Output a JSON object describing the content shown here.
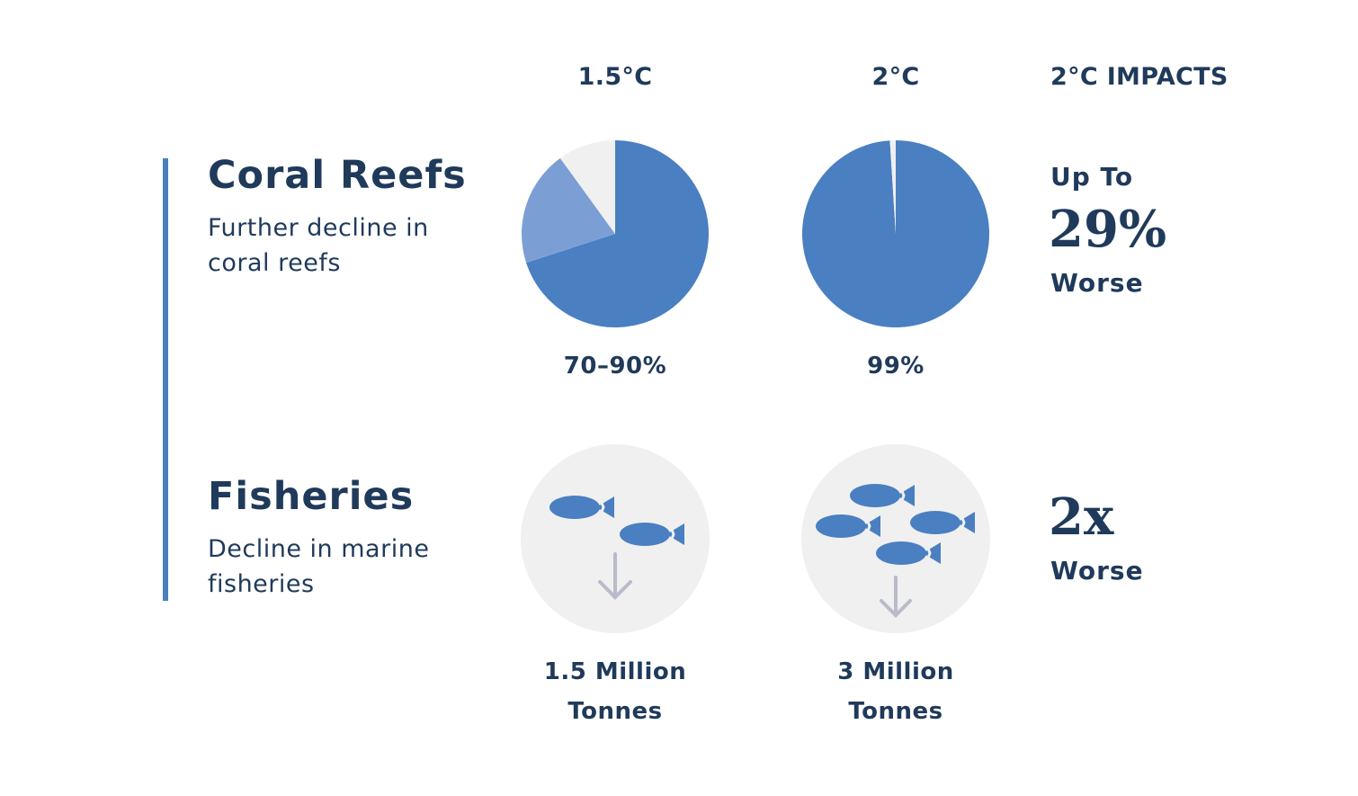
{
  "columns": {
    "col1": "1.5°C",
    "col2": "2°C",
    "col3": "2°C IMPACTS"
  },
  "colors": {
    "accent": "#4a7fc1",
    "accent_light": "#7b9fd4",
    "neutral": "#f0f0f1",
    "text": "#1f3a5a",
    "arrow": "#b9bbc9"
  },
  "coral": {
    "title": "Coral Reefs",
    "desc_line1": "Further decline in",
    "desc_line2": "coral reefs",
    "pie_15": {
      "label": "70–90%",
      "low": 0.7,
      "high": 0.9
    },
    "pie_2": {
      "label": "99%",
      "value": 0.99
    },
    "impact": {
      "prefix": "Up To",
      "value": "29%",
      "suffix": "Worse"
    }
  },
  "fisheries": {
    "title": "Fisheries",
    "desc_line1": "Decline in marine",
    "desc_line2": "fisheries",
    "c15": {
      "line1": "1.5 Million",
      "line2": "Tonnes",
      "fish_icons": 2
    },
    "c2": {
      "line1": "3 Million",
      "line2": "Tonnes",
      "fish_icons": 4
    },
    "impact": {
      "value": "2x",
      "suffix": "Worse"
    }
  },
  "icons": {
    "fish": "fish-icon",
    "arrow": "down-arrow-icon"
  }
}
